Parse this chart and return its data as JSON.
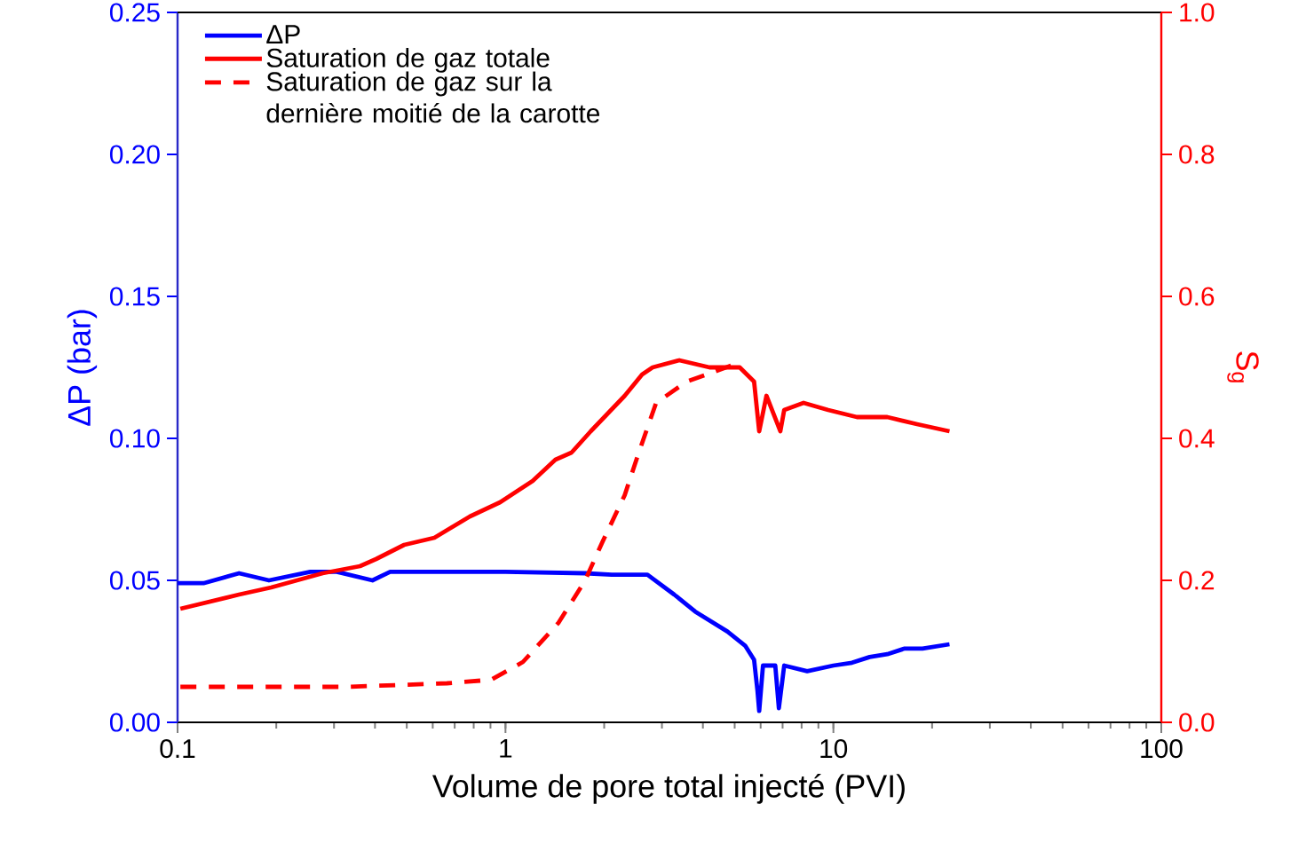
{
  "chart_data": {
    "type": "line",
    "xlabel": "Volume de pore total injecté (PVI)",
    "ylabel": "ΔP (bar)",
    "y2label": "S$_{g}$",
    "log": "x",
    "legend": "top left",
    "marker": "none",
    "xlim": [
      0.1,
      100
    ],
    "xticks": [
      0.1,
      1,
      10,
      100
    ],
    "ylim": [
      0,
      0.25
    ],
    "yticks": [
      {
        "value": 0,
        "label": "0.00"
      },
      {
        "value": 0.05,
        "label": "0.05"
      },
      {
        "value": 0.1,
        "label": "0.10"
      },
      {
        "value": 0.15,
        "label": "0.15"
      },
      {
        "value": 0.2,
        "label": "0.20"
      },
      {
        "value": 0.25,
        "label": "0.25"
      }
    ],
    "y2lim": [
      0,
      1
    ],
    "y2ticks": [
      {
        "value": 0,
        "label": "0.0"
      },
      0.2,
      0.4,
      0.6,
      0.8,
      {
        "value": 1,
        "label": "1.0"
      }
    ],
    "series": [
      {
        "name": "ΔP",
        "color": "#0000ff",
        "axis": "y",
        "line_style": "solid",
        "x": [
          0.1,
          0.12,
          0.154,
          0.19,
          0.254,
          0.306,
          0.393,
          0.445,
          0.646,
          1,
          1.75,
          2.11,
          2.71,
          3.27,
          3.79,
          4.75,
          5.38,
          5.73,
          5.87,
          5.94,
          6.1,
          6.65,
          6.82,
          7.08,
          8.32,
          10,
          11.4,
          12.9,
          14.6,
          16.5,
          18.7,
          22.6
        ],
        "values": [
          0.049,
          0.049,
          0.0525,
          0.05,
          0.053,
          0.053,
          0.05,
          0.053,
          0.053,
          0.053,
          0.0525,
          0.052,
          0.052,
          0.045,
          0.039,
          0.032,
          0.027,
          0.022,
          0.011,
          0.004,
          0.02,
          0.02,
          0.005,
          0.02,
          0.018,
          0.02,
          0.021,
          0.023,
          0.024,
          0.026,
          0.026,
          0.0275
        ]
      },
      {
        "name": "Saturation de gaz totale",
        "color": "#ff0000",
        "axis": "y2",
        "line_style": "solid",
        "x": [
          0.102,
          0.154,
          0.193,
          0.277,
          0.36,
          0.403,
          0.491,
          0.607,
          0.779,
          0.963,
          1.21,
          1.42,
          1.59,
          1.82,
          2.31,
          2.61,
          2.81,
          3.39,
          4.19,
          5.18,
          5.73,
          5.94,
          6.25,
          6.89,
          7.08,
          8.11,
          9.64,
          11.8,
          14.6,
          18.0,
          22.6
        ],
        "values": [
          0.16,
          0.18,
          0.19,
          0.21,
          0.22,
          0.23,
          0.25,
          0.26,
          0.29,
          0.31,
          0.34,
          0.37,
          0.38,
          0.41,
          0.46,
          0.49,
          0.5,
          0.51,
          0.5,
          0.5,
          0.48,
          0.41,
          0.46,
          0.41,
          0.44,
          0.45,
          0.44,
          0.43,
          0.43,
          0.42,
          0.41
        ]
      },
      {
        "name": "Saturation de gaz sur la dernière moitié de la carotte",
        "color": "#ff0000",
        "axis": "y2",
        "line_style": "dashed",
        "x": [
          0.102,
          0.325,
          0.663,
          0.905,
          1.13,
          1.45,
          1.75,
          1.98,
          2.31,
          2.55,
          2.88,
          3.57,
          5.05
        ],
        "values": [
          0.05,
          0.05,
          0.055,
          0.06,
          0.085,
          0.14,
          0.2,
          0.255,
          0.32,
          0.38,
          0.45,
          0.48,
          0.505
        ]
      }
    ]
  }
}
